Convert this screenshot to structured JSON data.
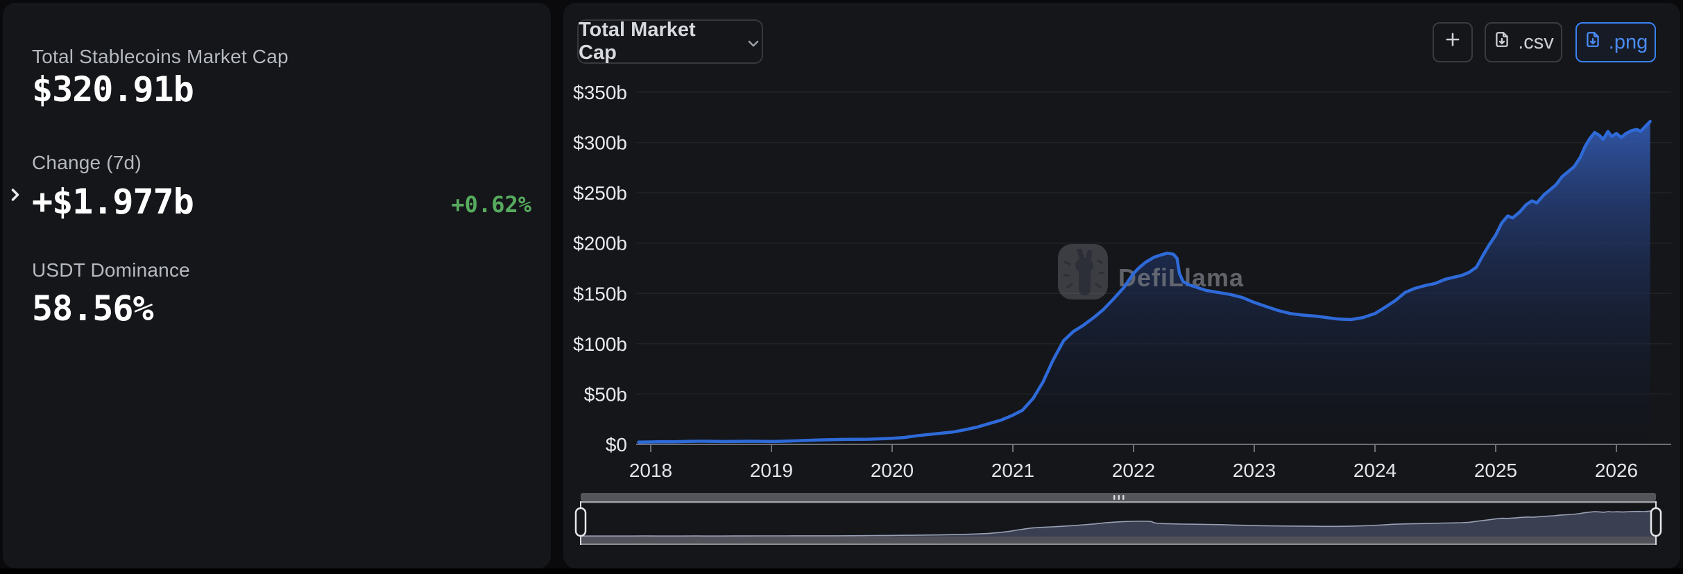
{
  "stats": {
    "market_cap_label": "Total Stablecoins Market Cap",
    "market_cap_value": "$320.91b",
    "change_label": "Change (7d)",
    "change_value": "+$1.977b",
    "change_pct": "+0.62%",
    "dominance_label": "USDT Dominance",
    "dominance_value": "58.56%"
  },
  "toolbar": {
    "metric_selector": "Total Market Cap",
    "add_icon": "plus-icon",
    "csv_button": ".csv",
    "png_button": ".png"
  },
  "watermark": "DefiLlama",
  "colors": {
    "accent_blue": "#3b82f6",
    "line_blue": "#2e6ad8",
    "positive_green": "#57ab5e",
    "panel_bg": "#15161a",
    "page_bg": "#0a0a0c"
  },
  "chart_data": {
    "type": "area",
    "title": "Total Stablecoins Market Cap",
    "series_name": "Total Market Cap",
    "unit": "USD billions",
    "grid": "horizontal",
    "legend_position": "none",
    "line_color": "#2e6ad8",
    "xlim": [
      2017.9,
      2026.3
    ],
    "ylim": [
      0,
      350
    ],
    "x_ticks": [
      2018,
      2019,
      2020,
      2021,
      2022,
      2023,
      2024,
      2025,
      2026
    ],
    "y_ticks": [
      {
        "value": 0,
        "label": "$0"
      },
      {
        "value": 50,
        "label": "$50b"
      },
      {
        "value": 100,
        "label": "$100b"
      },
      {
        "value": 150,
        "label": "$150b"
      },
      {
        "value": 200,
        "label": "$200b"
      },
      {
        "value": 250,
        "label": "$250b"
      },
      {
        "value": 300,
        "label": "$300b"
      },
      {
        "value": 350,
        "label": "$350b"
      }
    ],
    "x": [
      2017.9,
      2018.0,
      2018.1,
      2018.2,
      2018.3,
      2018.4,
      2018.5,
      2018.6,
      2018.7,
      2018.8,
      2018.9,
      2019.0,
      2019.1,
      2019.2,
      2019.3,
      2019.4,
      2019.5,
      2019.6,
      2019.7,
      2019.8,
      2019.9,
      2020.0,
      2020.1,
      2020.2,
      2020.3,
      2020.4,
      2020.5,
      2020.6,
      2020.7,
      2020.8,
      2020.9,
      2021.0,
      2021.08,
      2021.17,
      2021.25,
      2021.33,
      2021.42,
      2021.5,
      2021.58,
      2021.67,
      2021.75,
      2021.83,
      2021.92,
      2022.0,
      2022.05,
      2022.1,
      2022.17,
      2022.22,
      2022.28,
      2022.33,
      2022.36,
      2022.38,
      2022.41,
      2022.45,
      2022.5,
      2022.55,
      2022.6,
      2022.7,
      2022.8,
      2022.9,
      2023.0,
      2023.1,
      2023.2,
      2023.3,
      2023.4,
      2023.5,
      2023.6,
      2023.7,
      2023.8,
      2023.9,
      2024.0,
      2024.08,
      2024.17,
      2024.25,
      2024.33,
      2024.42,
      2024.5,
      2024.58,
      2024.65,
      2024.72,
      2024.78,
      2024.84,
      2024.9,
      2024.95,
      2025.0,
      2025.05,
      2025.1,
      2025.14,
      2025.2,
      2025.25,
      2025.3,
      2025.34,
      2025.4,
      2025.45,
      2025.5,
      2025.55,
      2025.6,
      2025.65,
      2025.7,
      2025.74,
      2025.78,
      2025.82,
      2025.86,
      2025.89,
      2025.93,
      2025.96,
      2026.0,
      2026.04,
      2026.08,
      2026.13,
      2026.17,
      2026.2,
      2026.24,
      2026.28
    ],
    "values": [
      2.2,
      2.4,
      2.7,
      2.6,
      2.9,
      3.1,
      3.0,
      2.8,
      2.9,
      3.1,
      3.0,
      2.8,
      3.1,
      3.5,
      4.0,
      4.4,
      4.7,
      4.9,
      5.0,
      5.1,
      5.5,
      6.0,
      6.8,
      8.5,
      9.8,
      11.0,
      12.2,
      14.5,
      17.0,
      20.5,
      24.0,
      29,
      34,
      46,
      62,
      83,
      103,
      112,
      118,
      126,
      134,
      144,
      156,
      170,
      176,
      181,
      186,
      188,
      190,
      189,
      185,
      170,
      162,
      159,
      157,
      155,
      153,
      151,
      149,
      146,
      141,
      137,
      133,
      130,
      128.5,
      127.5,
      126,
      124.5,
      124,
      126,
      130,
      136,
      143,
      151,
      155,
      158,
      160,
      164,
      166,
      168,
      171,
      176,
      189,
      199,
      208,
      220,
      227,
      225,
      231,
      238,
      242,
      240,
      248,
      253,
      258,
      266,
      271,
      276,
      285,
      296,
      304,
      310,
      307,
      303,
      311,
      306,
      309,
      305,
      309,
      312,
      313,
      311,
      316,
      320.91
    ]
  }
}
